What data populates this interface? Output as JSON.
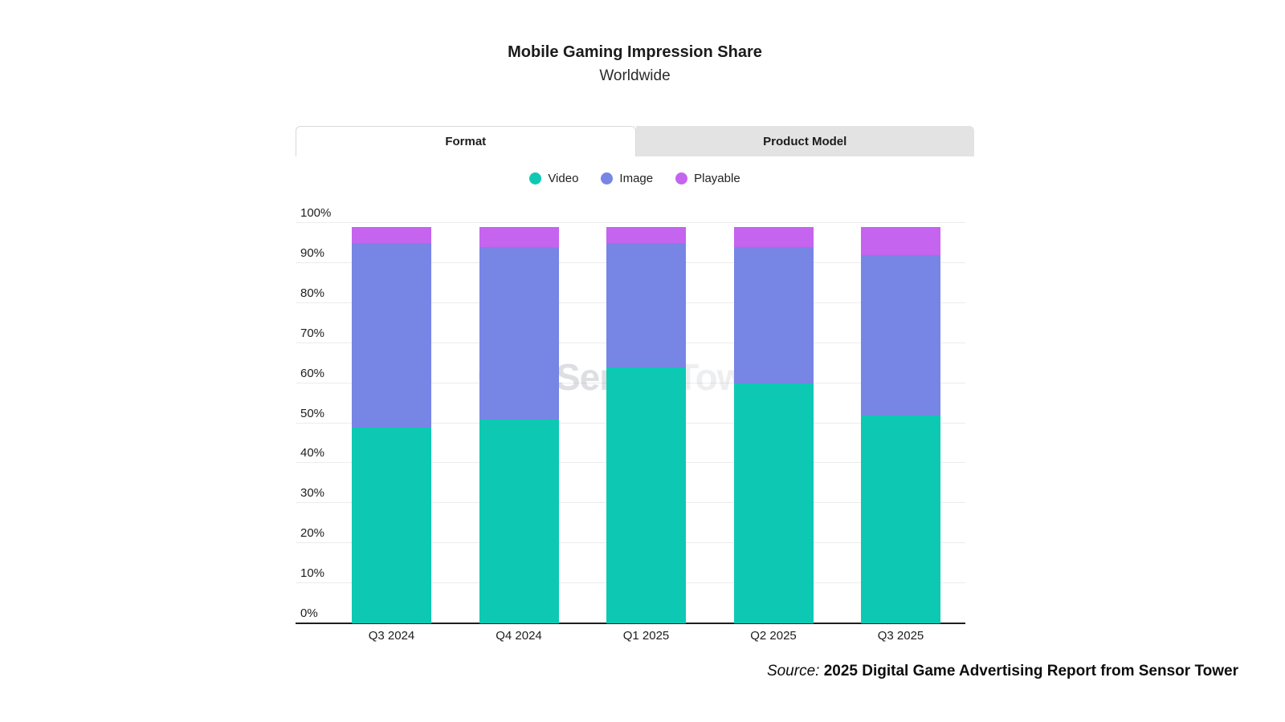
{
  "header": {
    "title": "Mobile Gaming Impression Share",
    "subtitle": "Worldwide"
  },
  "tabs": [
    {
      "label": "Format",
      "active": true
    },
    {
      "label": "Product Model",
      "active": false
    }
  ],
  "watermark": {
    "brand_first": "Sensor",
    "brand_second": "Tower"
  },
  "source": {
    "prefix": "Source:",
    "text": "2025 Digital Game Advertising Report from Sensor Tower"
  },
  "colors": {
    "video": "#0DC9B3",
    "image": "#7785E4",
    "playable": "#C464EF",
    "inactive_tab_bg": "#e3e3e3",
    "gridline": "#ececec",
    "axis_line": "#1f1f1f"
  },
  "chart_data": {
    "type": "bar",
    "stacked": true,
    "title": "Mobile Gaming Impression Share",
    "subtitle": "Worldwide",
    "categories": [
      "Q3 2024",
      "Q4 2024",
      "Q1 2025",
      "Q2 2025",
      "Q3 2025"
    ],
    "series": [
      {
        "name": "Video",
        "color": "#0DC9B3",
        "values": [
          49,
          51,
          64,
          60,
          52
        ]
      },
      {
        "name": "Image",
        "color": "#7785E4",
        "values": [
          46,
          43,
          31,
          34,
          40
        ]
      },
      {
        "name": "Playable",
        "color": "#C464EF",
        "values": [
          4,
          5,
          4,
          5,
          7
        ]
      }
    ],
    "xlabel": "",
    "ylabel": "",
    "ylim": [
      0,
      100
    ],
    "yticks": [
      "0%",
      "10%",
      "20%",
      "30%",
      "40%",
      "50%",
      "60%",
      "70%",
      "80%",
      "90%",
      "100%"
    ],
    "grid": true,
    "legend_position": "top"
  }
}
